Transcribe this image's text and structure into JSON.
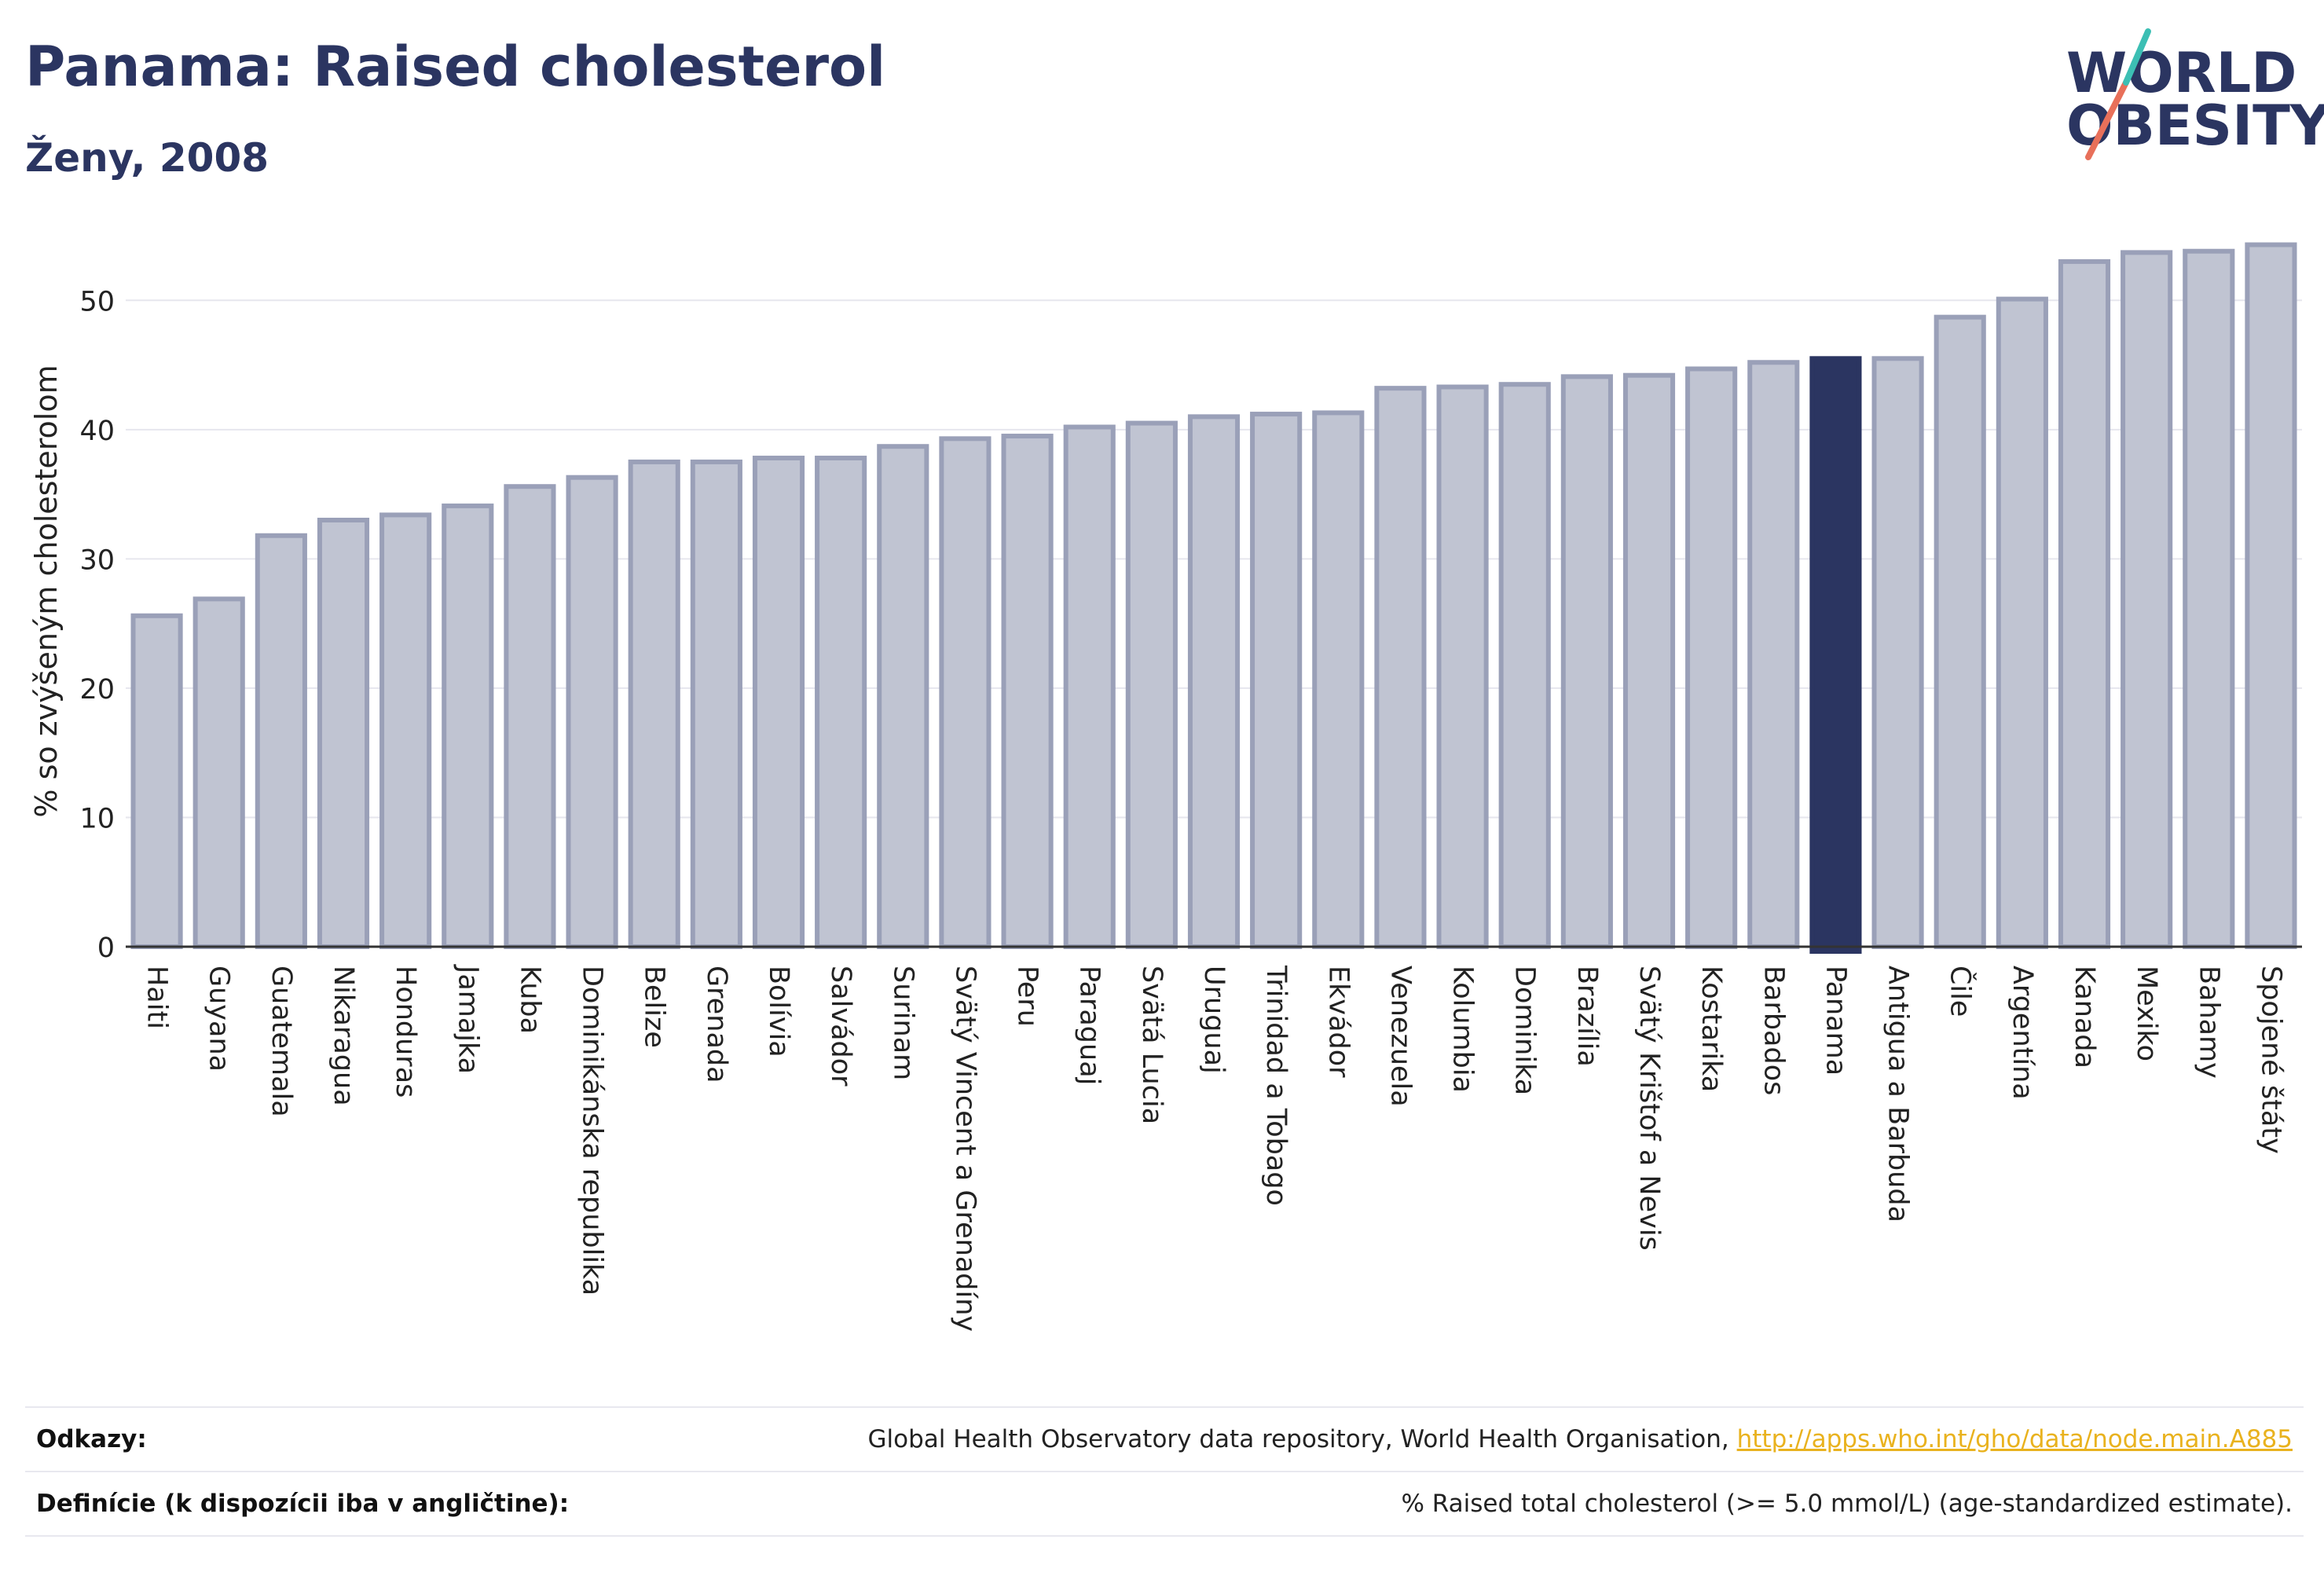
{
  "header": {
    "title": "Panama: Raised cholesterol",
    "subtitle": "Ženy, 2008"
  },
  "logo": {
    "line1": "WORLD",
    "line2": "OBESITY"
  },
  "chart_data": {
    "type": "bar",
    "ylabel": "% so zvýšeným cholesterolom",
    "xlabel": "",
    "ylim": [
      0,
      55
    ],
    "yticks": [
      0,
      10,
      20,
      30,
      40,
      50
    ],
    "grid": true,
    "highlight": "Panama",
    "colors": {
      "bar": "#c0c4d2",
      "bar_border": "#9aa0b8",
      "highlight": "#2b3561",
      "grid": "#e6e6ee",
      "axis": "#333333"
    },
    "categories": [
      "Haiti",
      "Guyana",
      "Guatemala",
      "Nikaragua",
      "Honduras",
      "Jamajka",
      "Kuba",
      "Dominikánska republika",
      "Belize",
      "Grenada",
      "Bolívia",
      "Salvádor",
      "Surinam",
      "Svätý Vincent a Grenadíny",
      "Peru",
      "Paraguaj",
      "Svätá Lucia",
      "Uruguaj",
      "Trinidad a Tobago",
      "Ekvádor",
      "Venezuela",
      "Kolumbia",
      "Dominika",
      "Brazília",
      "Svätý Krištof a Nevis",
      "Kostarika",
      "Barbados",
      "Panama",
      "Antigua a Barbuda",
      "Čile",
      "Argentína",
      "Kanada",
      "Mexiko",
      "Bahamy",
      "Spojené štáty"
    ],
    "values": [
      25.6,
      26.9,
      31.8,
      33.0,
      33.4,
      34.1,
      35.6,
      36.3,
      37.5,
      37.5,
      37.8,
      37.8,
      38.7,
      39.3,
      39.5,
      40.2,
      40.5,
      41.0,
      41.2,
      41.3,
      43.2,
      43.3,
      43.5,
      44.1,
      44.2,
      44.7,
      45.2,
      45.5,
      45.5,
      48.7,
      50.1,
      53.0,
      53.7,
      53.8,
      54.3
    ]
  },
  "references": {
    "sources_label": "Odkazy:",
    "sources_text": "Global Health Observatory data repository, World Health Organisation, ",
    "sources_link": "http://apps.who.int/gho/data/node.main.A885",
    "definitions_label": "Definície (k dispozícii iba v angličtine):",
    "definitions_text": "% Raised total cholesterol (>= 5.0 mmol/L) (age-standardized estimate)."
  }
}
